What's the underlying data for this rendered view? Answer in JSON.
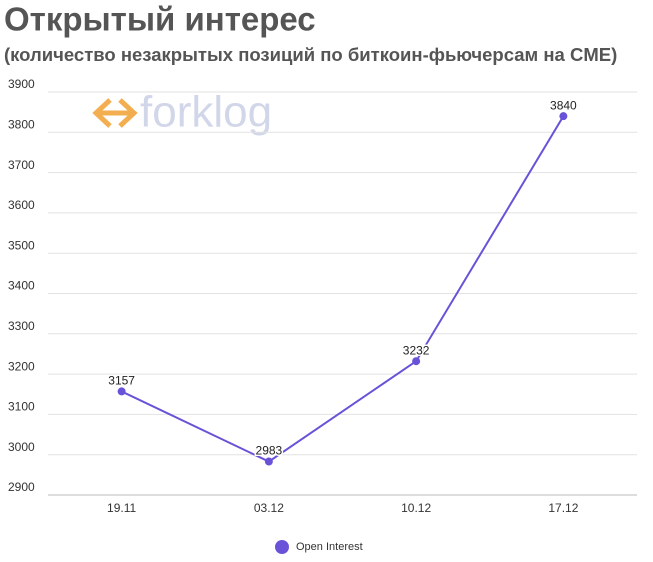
{
  "chart_data": {
    "type": "line",
    "title": "Открытый интерес",
    "subtitle": "(количество незакрытых позиций по биткоин-фьючерсам на CME)",
    "watermark": "forklog",
    "categories": [
      "19.11",
      "03.12",
      "10.12",
      "17.12"
    ],
    "series": [
      {
        "name": "Open Interest",
        "color": "#6a52d8",
        "values": [
          3157,
          2983,
          3232,
          3840
        ]
      }
    ],
    "ylim": [
      2900,
      3900
    ],
    "yticks": [
      2900,
      3000,
      3100,
      3200,
      3300,
      3400,
      3500,
      3600,
      3700,
      3800,
      3900
    ],
    "grid": true,
    "legend": "bottom"
  }
}
